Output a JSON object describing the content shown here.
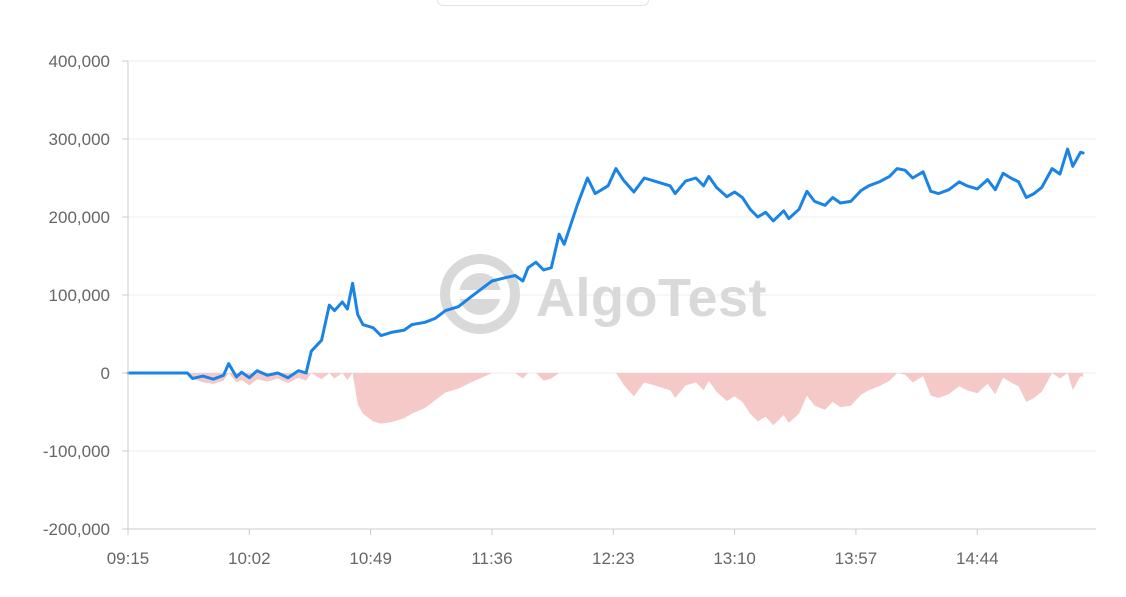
{
  "watermark": {
    "text": "AlgoTest"
  },
  "colors": {
    "line": "#1a84e6",
    "drawdown_fill": "#f6c9c9",
    "grid": "#ececec",
    "axis": "#cccccc",
    "tick_text": "#666666",
    "watermark": "#d9d9d9"
  },
  "chart_data": {
    "type": "line",
    "x_ticks": [
      "09:15",
      "10:02",
      "10:49",
      "11:36",
      "12:23",
      "13:10",
      "13:57",
      "14:44"
    ],
    "y_ticks": [
      "400,000",
      "300,000",
      "200,000",
      "100,000",
      "0",
      "-100,000",
      "-200,000"
    ],
    "ylim": [
      -200000,
      400000
    ],
    "xlim": [
      "09:15",
      "15:30"
    ],
    "grid": true,
    "legend": "none",
    "series": [
      {
        "role": "pnl",
        "style": "line",
        "points": [
          [
            "09:15",
            0
          ],
          [
            "09:30",
            0
          ],
          [
            "09:38",
            0
          ],
          [
            "09:40",
            -7000
          ],
          [
            "09:44",
            -4000
          ],
          [
            "09:48",
            -8000
          ],
          [
            "09:52",
            -3000
          ],
          [
            "09:54",
            12000
          ],
          [
            "09:57",
            -5000
          ],
          [
            "09:59",
            1000
          ],
          [
            "10:02",
            -6000
          ],
          [
            "10:05",
            3000
          ],
          [
            "10:09",
            -3000
          ],
          [
            "10:13",
            0
          ],
          [
            "10:17",
            -6000
          ],
          [
            "10:21",
            3000
          ],
          [
            "10:24",
            0
          ],
          [
            "10:26",
            28000
          ],
          [
            "10:30",
            42000
          ],
          [
            "10:33",
            87000
          ],
          [
            "10:35",
            80000
          ],
          [
            "10:38",
            91000
          ],
          [
            "10:40",
            82000
          ],
          [
            "10:42",
            115000
          ],
          [
            "10:44",
            75000
          ],
          [
            "10:46",
            62000
          ],
          [
            "10:50",
            58000
          ],
          [
            "10:53",
            48000
          ],
          [
            "10:57",
            52000
          ],
          [
            "11:02",
            55000
          ],
          [
            "11:05",
            62000
          ],
          [
            "11:10",
            65000
          ],
          [
            "11:14",
            70000
          ],
          [
            "11:18",
            80000
          ],
          [
            "11:23",
            85000
          ],
          [
            "11:28",
            98000
          ],
          [
            "11:32",
            108000
          ],
          [
            "11:36",
            118000
          ],
          [
            "11:41",
            122000
          ],
          [
            "11:45",
            125000
          ],
          [
            "11:48",
            118000
          ],
          [
            "11:50",
            135000
          ],
          [
            "11:53",
            142000
          ],
          [
            "11:56",
            132000
          ],
          [
            "11:59",
            135000
          ],
          [
            "12:02",
            178000
          ],
          [
            "12:04",
            165000
          ],
          [
            "12:09",
            215000
          ],
          [
            "12:13",
            250000
          ],
          [
            "12:16",
            230000
          ],
          [
            "12:21",
            240000
          ],
          [
            "12:24",
            262000
          ],
          [
            "12:27",
            247000
          ],
          [
            "12:31",
            232000
          ],
          [
            "12:35",
            250000
          ],
          [
            "12:40",
            245000
          ],
          [
            "12:45",
            240000
          ],
          [
            "12:47",
            230000
          ],
          [
            "12:51",
            246000
          ],
          [
            "12:55",
            250000
          ],
          [
            "12:58",
            240000
          ],
          [
            "13:00",
            252000
          ],
          [
            "13:03",
            238000
          ],
          [
            "13:07",
            226000
          ],
          [
            "13:10",
            232000
          ],
          [
            "13:13",
            225000
          ],
          [
            "13:16",
            210000
          ],
          [
            "13:19",
            200000
          ],
          [
            "13:22",
            206000
          ],
          [
            "13:25",
            195000
          ],
          [
            "13:29",
            208000
          ],
          [
            "13:31",
            198000
          ],
          [
            "13:35",
            210000
          ],
          [
            "13:38",
            233000
          ],
          [
            "13:41",
            220000
          ],
          [
            "13:45",
            215000
          ],
          [
            "13:48",
            225000
          ],
          [
            "13:51",
            218000
          ],
          [
            "13:55",
            220000
          ],
          [
            "13:59",
            234000
          ],
          [
            "14:02",
            240000
          ],
          [
            "14:06",
            245000
          ],
          [
            "14:10",
            252000
          ],
          [
            "14:13",
            262000
          ],
          [
            "14:16",
            260000
          ],
          [
            "14:19",
            250000
          ],
          [
            "14:23",
            258000
          ],
          [
            "14:26",
            233000
          ],
          [
            "14:29",
            230000
          ],
          [
            "14:33",
            235000
          ],
          [
            "14:37",
            245000
          ],
          [
            "14:40",
            240000
          ],
          [
            "14:44",
            236000
          ],
          [
            "14:48",
            248000
          ],
          [
            "14:51",
            235000
          ],
          [
            "14:54",
            256000
          ],
          [
            "14:57",
            250000
          ],
          [
            "15:00",
            245000
          ],
          [
            "15:03",
            225000
          ],
          [
            "15:06",
            230000
          ],
          [
            "15:09",
            238000
          ],
          [
            "15:13",
            262000
          ],
          [
            "15:16",
            255000
          ],
          [
            "15:19",
            287000
          ],
          [
            "15:21",
            265000
          ],
          [
            "15:24",
            283000
          ],
          [
            "15:25",
            282000
          ]
        ]
      },
      {
        "role": "drawdown",
        "style": "area",
        "points": [
          [
            "09:15",
            0
          ],
          [
            "09:38",
            0
          ],
          [
            "09:40",
            -7000
          ],
          [
            "09:44",
            -12000
          ],
          [
            "09:48",
            -14000
          ],
          [
            "09:52",
            -10000
          ],
          [
            "09:54",
            0
          ],
          [
            "09:57",
            -12000
          ],
          [
            "09:59",
            -9000
          ],
          [
            "10:02",
            -16000
          ],
          [
            "10:05",
            -8000
          ],
          [
            "10:09",
            -11000
          ],
          [
            "10:13",
            -7000
          ],
          [
            "10:17",
            -13000
          ],
          [
            "10:21",
            -6000
          ],
          [
            "10:24",
            -10000
          ],
          [
            "10:26",
            0
          ],
          [
            "10:30",
            -8000
          ],
          [
            "10:33",
            0
          ],
          [
            "10:35",
            -7000
          ],
          [
            "10:38",
            0
          ],
          [
            "10:40",
            -9000
          ],
          [
            "10:42",
            0
          ],
          [
            "10:44",
            -40000
          ],
          [
            "10:46",
            -52000
          ],
          [
            "10:50",
            -62000
          ],
          [
            "10:53",
            -65000
          ],
          [
            "10:57",
            -63000
          ],
          [
            "11:02",
            -58000
          ],
          [
            "11:05",
            -52000
          ],
          [
            "11:10",
            -45000
          ],
          [
            "11:14",
            -35000
          ],
          [
            "11:18",
            -25000
          ],
          [
            "11:23",
            -20000
          ],
          [
            "11:28",
            -12000
          ],
          [
            "11:32",
            -6000
          ],
          [
            "11:36",
            0
          ],
          [
            "11:45",
            0
          ],
          [
            "11:48",
            -7000
          ],
          [
            "11:50",
            0
          ],
          [
            "11:53",
            0
          ],
          [
            "11:56",
            -10000
          ],
          [
            "11:59",
            -7000
          ],
          [
            "12:02",
            0
          ],
          [
            "12:24",
            0
          ],
          [
            "12:27",
            -15000
          ],
          [
            "12:31",
            -30000
          ],
          [
            "12:35",
            -12000
          ],
          [
            "12:40",
            -17000
          ],
          [
            "12:45",
            -22000
          ],
          [
            "12:47",
            -32000
          ],
          [
            "12:51",
            -16000
          ],
          [
            "12:55",
            -12000
          ],
          [
            "12:58",
            -22000
          ],
          [
            "13:00",
            -10000
          ],
          [
            "13:03",
            -24000
          ],
          [
            "13:07",
            -36000
          ],
          [
            "13:10",
            -30000
          ],
          [
            "13:13",
            -37000
          ],
          [
            "13:16",
            -52000
          ],
          [
            "13:19",
            -62000
          ],
          [
            "13:22",
            -56000
          ],
          [
            "13:25",
            -67000
          ],
          [
            "13:29",
            -54000
          ],
          [
            "13:31",
            -64000
          ],
          [
            "13:35",
            -52000
          ],
          [
            "13:38",
            -29000
          ],
          [
            "13:41",
            -42000
          ],
          [
            "13:45",
            -47000
          ],
          [
            "13:48",
            -37000
          ],
          [
            "13:51",
            -44000
          ],
          [
            "13:55",
            -42000
          ],
          [
            "13:59",
            -28000
          ],
          [
            "14:02",
            -22000
          ],
          [
            "14:06",
            -17000
          ],
          [
            "14:10",
            -10000
          ],
          [
            "14:13",
            0
          ],
          [
            "14:16",
            -2000
          ],
          [
            "14:19",
            -12000
          ],
          [
            "14:23",
            -4000
          ],
          [
            "14:26",
            -29000
          ],
          [
            "14:29",
            -32000
          ],
          [
            "14:33",
            -27000
          ],
          [
            "14:37",
            -17000
          ],
          [
            "14:40",
            -22000
          ],
          [
            "14:44",
            -26000
          ],
          [
            "14:48",
            -14000
          ],
          [
            "14:51",
            -27000
          ],
          [
            "14:54",
            -6000
          ],
          [
            "14:57",
            -12000
          ],
          [
            "15:00",
            -17000
          ],
          [
            "15:03",
            -37000
          ],
          [
            "15:06",
            -32000
          ],
          [
            "15:09",
            -24000
          ],
          [
            "15:13",
            0
          ],
          [
            "15:16",
            -7000
          ],
          [
            "15:19",
            0
          ],
          [
            "15:21",
            -22000
          ],
          [
            "15:24",
            -4000
          ],
          [
            "15:25",
            -5000
          ]
        ]
      }
    ]
  }
}
